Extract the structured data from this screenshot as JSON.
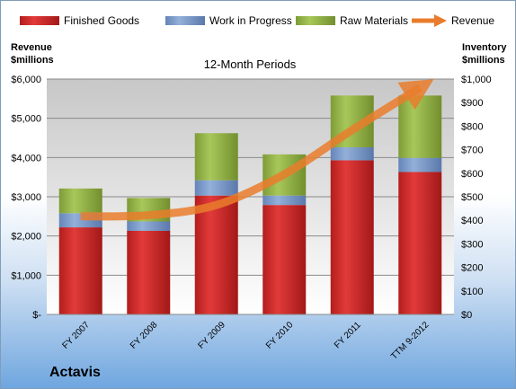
{
  "company": "Actavis",
  "chart_data": {
    "type": "bar",
    "stacked": true,
    "title": "12-Month Periods",
    "ylabel": "Revenue $millions",
    "y2label": "Inventory $millions",
    "categories": [
      "FY 2007",
      "FY 2008",
      "FY 2009",
      "FY 2010",
      "FY 2011",
      "TTM 9-2012"
    ],
    "left_axis": {
      "range": [
        0,
        6000
      ],
      "ticks": [
        0,
        1000,
        2000,
        3000,
        4000,
        5000,
        6000
      ],
      "tick_labels": [
        "$-",
        "$1,000",
        "$2,000",
        "$3,000",
        "$4,000",
        "$5,000",
        "$6,000"
      ]
    },
    "right_axis": {
      "range": [
        0,
        1000
      ],
      "ticks": [
        0,
        100,
        200,
        300,
        400,
        500,
        600,
        700,
        800,
        900,
        1000
      ],
      "tick_labels": [
        "$0",
        "$100",
        "$200",
        "$300",
        "$400",
        "$500",
        "$600",
        "$700",
        "$800",
        "$900",
        "$1,000"
      ]
    },
    "series": [
      {
        "name": "Finished Goods",
        "axis": "right",
        "color": "#d42a2a",
        "values": [
          370,
          355,
          505,
          465,
          655,
          605
        ]
      },
      {
        "name": "Work in Progress",
        "axis": "right",
        "color": "#7a9acb",
        "values": [
          60,
          40,
          65,
          40,
          55,
          60
        ]
      },
      {
        "name": "Raw Materials",
        "axis": "right",
        "color": "#98bb48",
        "values": [
          105,
          100,
          200,
          175,
          220,
          265
        ]
      },
      {
        "name": "Revenue",
        "axis": "left",
        "type": "line",
        "color": "#e97c2c",
        "values": [
          2500,
          2530,
          2790,
          3570,
          4700,
          5780
        ]
      }
    ],
    "legend_position": "top",
    "grid": true
  }
}
